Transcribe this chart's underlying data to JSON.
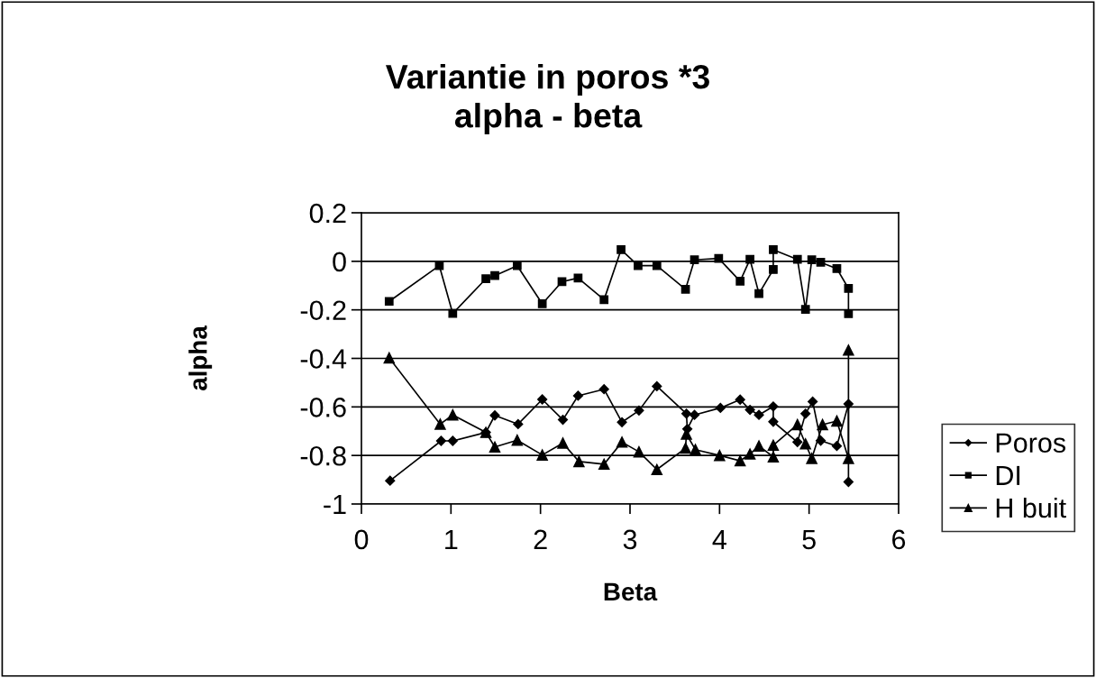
{
  "chart_data": {
    "type": "line",
    "title": "Variantie in poros *3\nalpha - beta",
    "xlabel": "Beta",
    "ylabel": "alpha",
    "xlim": [
      0,
      6
    ],
    "xticks": [
      0,
      1,
      2,
      3,
      4,
      5,
      6
    ],
    "ylim": [
      -1,
      0.2
    ],
    "yticks": [
      -1,
      -0.8,
      -0.6,
      -0.4,
      -0.2,
      0,
      0.2
    ],
    "grid": "y",
    "legend": "right",
    "series": [
      {
        "name": "Poros",
        "color": "#000000",
        "marker": "diamond",
        "x": [
          0.32,
          0.89,
          1.02,
          1.39,
          1.49,
          1.75,
          2.02,
          2.25,
          2.42,
          2.71,
          2.91,
          3.1,
          3.3,
          3.63,
          3.64,
          3.72,
          4.01,
          4.23,
          4.34,
          4.44,
          4.6,
          4.6,
          4.87,
          4.96,
          5.04,
          5.13,
          5.31,
          5.44,
          5.44
        ],
        "values": [
          -0.904,
          -0.74,
          -0.74,
          -0.705,
          -0.635,
          -0.671,
          -0.569,
          -0.653,
          -0.554,
          -0.527,
          -0.663,
          -0.615,
          -0.515,
          -0.628,
          -0.691,
          -0.633,
          -0.604,
          -0.57,
          -0.612,
          -0.633,
          -0.598,
          -0.661,
          -0.745,
          -0.628,
          -0.578,
          -0.739,
          -0.761,
          -0.588,
          -0.909
        ]
      },
      {
        "name": "DI",
        "color": "#000000",
        "marker": "square",
        "x": [
          0.31,
          0.87,
          1.02,
          1.39,
          1.49,
          1.74,
          2.02,
          2.24,
          2.42,
          2.71,
          2.9,
          3.09,
          3.3,
          3.62,
          3.72,
          3.99,
          4.23,
          4.34,
          4.44,
          4.6,
          4.6,
          4.87,
          4.96,
          5.03,
          5.13,
          5.31,
          5.44,
          5.44
        ],
        "values": [
          -0.165,
          -0.018,
          -0.215,
          -0.072,
          -0.059,
          -0.018,
          -0.175,
          -0.084,
          -0.069,
          -0.158,
          0.048,
          -0.018,
          -0.018,
          -0.115,
          0.006,
          0.012,
          -0.082,
          0.008,
          -0.133,
          -0.034,
          0.048,
          0.008,
          -0.198,
          0.006,
          -0.004,
          -0.03,
          -0.112,
          -0.216
        ]
      },
      {
        "name": "H buit",
        "color": "#000000",
        "marker": "triangle",
        "x": [
          0.31,
          0.88,
          1.02,
          1.39,
          1.49,
          1.74,
          2.02,
          2.25,
          2.43,
          2.71,
          2.91,
          3.1,
          3.3,
          3.62,
          3.63,
          3.73,
          4.0,
          4.23,
          4.34,
          4.44,
          4.6,
          4.6,
          4.87,
          4.96,
          5.03,
          5.15,
          5.31,
          5.44,
          5.44
        ],
        "values": [
          -0.398,
          -0.671,
          -0.633,
          -0.705,
          -0.765,
          -0.737,
          -0.798,
          -0.749,
          -0.825,
          -0.836,
          -0.745,
          -0.785,
          -0.858,
          -0.77,
          -0.712,
          -0.776,
          -0.8,
          -0.822,
          -0.794,
          -0.761,
          -0.806,
          -0.758,
          -0.673,
          -0.752,
          -0.812,
          -0.673,
          -0.658,
          -0.812,
          -0.366
        ]
      }
    ]
  }
}
